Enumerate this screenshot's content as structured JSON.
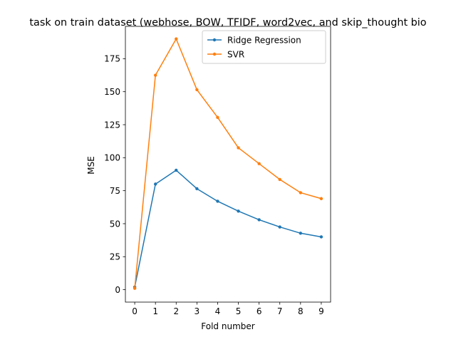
{
  "chart_data": {
    "type": "line",
    "title": "task on train dataset (webhose, BOW, TFIDF, word2vec, and skip_thought bio",
    "xlabel": "Fold number",
    "ylabel": "MSE",
    "x": [
      0,
      1,
      2,
      3,
      4,
      5,
      6,
      7,
      8,
      9
    ],
    "xticks": [
      "0",
      "1",
      "2",
      "3",
      "4",
      "5",
      "6",
      "7",
      "8",
      "9"
    ],
    "yticks": [
      0,
      25,
      50,
      75,
      100,
      125,
      150,
      175
    ],
    "xlim": [
      -0.45,
      9.45
    ],
    "ylim": [
      -9.4,
      199.5
    ],
    "grid": false,
    "legend_position": "top-right",
    "series": [
      {
        "name": "Ridge Regression",
        "color": "#1f77b4",
        "values": [
          2.0,
          80.0,
          90.5,
          76.5,
          67.0,
          59.5,
          53.0,
          47.5,
          42.8,
          40.0
        ]
      },
      {
        "name": "SVR",
        "color": "#ff7f0e",
        "values": [
          1.0,
          162.5,
          190.0,
          151.5,
          130.5,
          107.5,
          95.5,
          83.5,
          73.5,
          69.0
        ]
      }
    ]
  }
}
